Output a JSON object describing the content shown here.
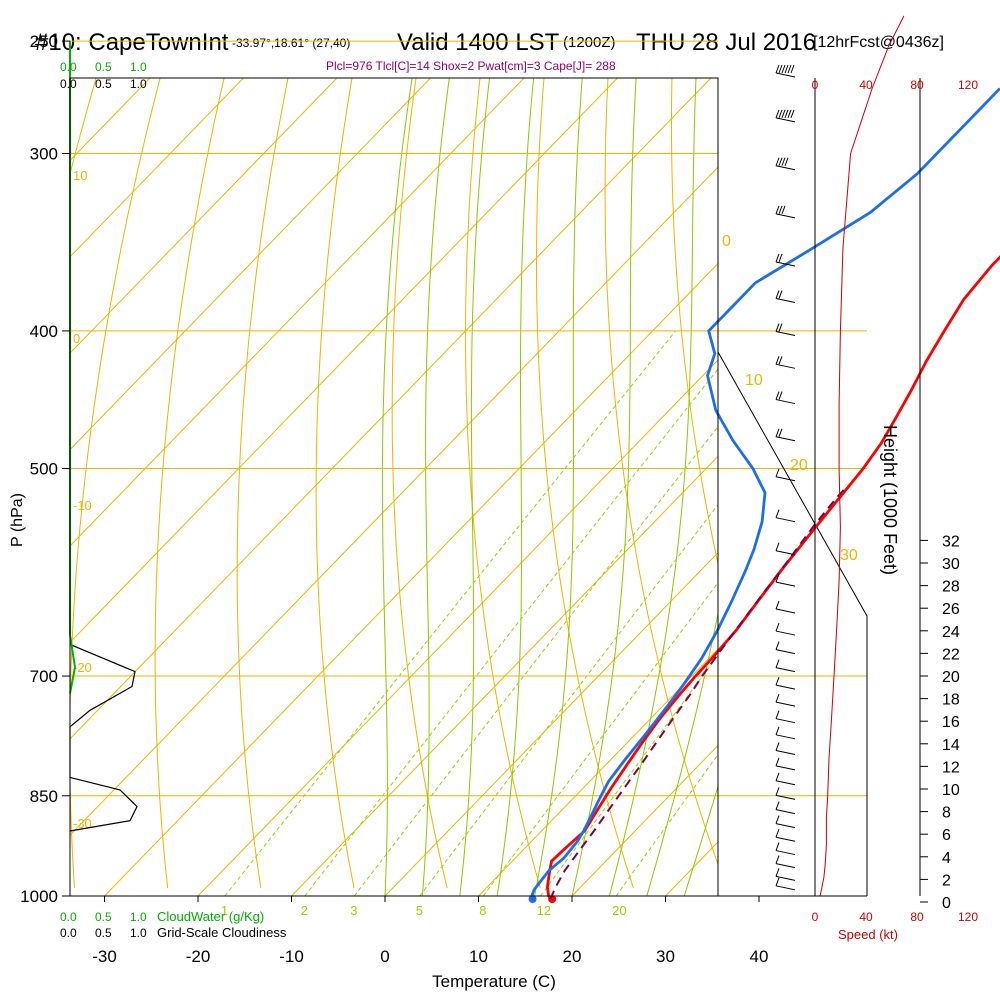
{
  "header": {
    "station": "#10: CapeTownInt",
    "location": "-33.97°,18.61° (27,40)",
    "valid": "Valid 1400 LST",
    "zulu": "(1200Z)",
    "date": "THU 28 Jul 2016",
    "forecast": "[12hrFcst@0436z]",
    "indices": "Plcl=976 Tlcl[C]=14 Shox=2 Pwat[cm]=3 Cape[J]= 288"
  },
  "chart_data": {
    "type": "line",
    "title": "#10: CapeTownInt",
    "xlabel": "Temperature (C)",
    "ylabel": "P (hPa)",
    "right_label": "Height (1000 Feet)",
    "speed_label": "Speed (kt)",
    "cloudwater_label": "CloudWater (g/Kg)",
    "cloudiness_label": "Grid-Scale Cloudiness",
    "x_ticks": [
      "-30",
      "-20",
      "-10",
      "0",
      "10",
      "20",
      "30",
      "40"
    ],
    "pressure_ticks": [
      "250",
      "300",
      "400",
      "500",
      "700",
      "850",
      "1000"
    ],
    "height_ticks": [
      "0",
      "2",
      "4",
      "6",
      "8",
      "10",
      "12",
      "14",
      "16",
      "18",
      "20",
      "22",
      "24",
      "26",
      "28",
      "30",
      "32"
    ],
    "speed_ticks": [
      "0",
      "40",
      "80",
      "120"
    ],
    "cloud_scale_ticks": [
      "0.0",
      "0.5",
      "1.0"
    ],
    "mixing_ratio_labels": [
      "1",
      "2",
      "3",
      "5",
      "8",
      "12",
      "20"
    ],
    "isotherm_labels": [
      "10",
      "0",
      "-10",
      "-20",
      "-30"
    ],
    "adiabat_labels": [
      "0",
      "10",
      "20",
      "30"
    ],
    "colors": {
      "temperature": "#ff0000",
      "dewpoint": "#1e6ee8",
      "parcel": "#800040",
      "grid": "#f0b400",
      "adiabat": "#8cc800",
      "mixing_ratio": "#9ad000",
      "cloudwater": "#00b000",
      "speed": "#cc0000",
      "indices": "#990066"
    },
    "series": [
      {
        "name": "Temperature",
        "points": [
          [
            18.2,
            1005
          ],
          [
            17.5,
            1000
          ],
          [
            16.4,
            985
          ],
          [
            15.0,
            960
          ],
          [
            14.2,
            945
          ],
          [
            14.3,
            930
          ],
          [
            14.6,
            900
          ],
          [
            13.8,
            870
          ],
          [
            13.0,
            840
          ],
          [
            12.3,
            810
          ],
          [
            11.6,
            780
          ],
          [
            11.0,
            750
          ],
          [
            10.6,
            720
          ],
          [
            10.4,
            700
          ],
          [
            10.3,
            680
          ],
          [
            10.0,
            650
          ],
          [
            9.3,
            620
          ],
          [
            8.6,
            590
          ],
          [
            8.0,
            560
          ],
          [
            7.4,
            530
          ],
          [
            6.8,
            500
          ],
          [
            6.1,
            480
          ],
          [
            5.0,
            460
          ],
          [
            3.8,
            440
          ],
          [
            2.4,
            420
          ],
          [
            1.2,
            400
          ],
          [
            0.0,
            380
          ],
          [
            -0.5,
            360
          ],
          [
            -0.5,
            340
          ],
          [
            -0.4,
            320
          ],
          [
            -0.2,
            300
          ],
          [
            0.1,
            285
          ],
          [
            0.7,
            270
          ]
        ]
      },
      {
        "name": "Dewpoint",
        "points": [
          [
            16.1,
            1005
          ],
          [
            15.7,
            1000
          ],
          [
            15.3,
            990
          ],
          [
            15.1,
            975
          ],
          [
            14.9,
            960
          ],
          [
            15.2,
            940
          ],
          [
            14.9,
            915
          ],
          [
            14.5,
            900
          ],
          [
            13.8,
            880
          ],
          [
            12.7,
            850
          ],
          [
            12.0,
            830
          ],
          [
            11.5,
            800
          ],
          [
            11.1,
            770
          ],
          [
            10.6,
            740
          ],
          [
            10.0,
            710
          ],
          [
            9.2,
            680
          ],
          [
            8.0,
            650
          ],
          [
            6.5,
            620
          ],
          [
            4.8,
            590
          ],
          [
            3.5,
            570
          ],
          [
            1.5,
            545
          ],
          [
            -1.2,
            520
          ],
          [
            -5.0,
            500
          ],
          [
            -10.0,
            478
          ],
          [
            -15.0,
            455
          ],
          [
            -19.5,
            430
          ],
          [
            -21.0,
            415
          ],
          [
            -24.0,
            400
          ],
          [
            -24.0,
            385
          ],
          [
            -24.0,
            370
          ],
          [
            -21.5,
            350
          ],
          [
            -19.0,
            330
          ],
          [
            -18.0,
            310
          ],
          [
            -18.0,
            300
          ],
          [
            -18.0,
            285
          ],
          [
            -18.0,
            270
          ]
        ]
      },
      {
        "name": "Parcel",
        "points": [
          [
            18.0,
            1005
          ],
          [
            17.3,
            985
          ],
          [
            16.6,
            960
          ],
          [
            16.1,
            930
          ],
          [
            15.6,
            900
          ],
          [
            15.0,
            870
          ],
          [
            14.4,
            840
          ],
          [
            13.8,
            810
          ],
          [
            13.1,
            780
          ],
          [
            12.4,
            750
          ],
          [
            11.7,
            720
          ],
          [
            11.1,
            700
          ],
          [
            10.4,
            670
          ],
          [
            9.7,
            640
          ],
          [
            9.0,
            610
          ],
          [
            8.3,
            580
          ],
          [
            7.5,
            550
          ],
          [
            7.0,
            525
          ],
          [
            6.9,
            515
          ]
        ]
      }
    ],
    "cloudiness": [
      [
        0.0,
        665
      ],
      [
        0.65,
        695
      ],
      [
        0.62,
        712
      ],
      [
        0.2,
        740
      ],
      [
        0.0,
        760
      ],
      [
        0.0,
        825
      ],
      [
        0.5,
        842
      ],
      [
        0.67,
        865
      ],
      [
        0.6,
        885
      ],
      [
        0.0,
        900
      ]
    ],
    "cloudwater": [
      [
        0.0,
        250
      ],
      [
        0.0,
        655
      ],
      [
        0.05,
        690
      ],
      [
        0.0,
        720
      ]
    ],
    "wind_speed": [
      [
        4,
        1000
      ],
      [
        5,
        990
      ],
      [
        7,
        970
      ],
      [
        8,
        950
      ],
      [
        9,
        920
      ],
      [
        9,
        880
      ],
      [
        10,
        850
      ],
      [
        11,
        800
      ],
      [
        13,
        750
      ],
      [
        15,
        700
      ],
      [
        17,
        650
      ],
      [
        19,
        600
      ],
      [
        20,
        550
      ],
      [
        19,
        500
      ],
      [
        19,
        450
      ],
      [
        20,
        400
      ],
      [
        22,
        350
      ],
      [
        28,
        300
      ],
      [
        45,
        270
      ],
      [
        58,
        252
      ],
      [
        70,
        240
      ]
    ],
    "wind_barbs": [
      {
        "p": 265,
        "flags": 6
      },
      {
        "p": 285,
        "flags": 6
      },
      {
        "p": 308,
        "flags": 4
      },
      {
        "p": 333,
        "flags": 3
      },
      {
        "p": 360,
        "flags": 2
      },
      {
        "p": 382,
        "flags": 2
      },
      {
        "p": 403,
        "flags": 2
      },
      {
        "p": 425,
        "flags": 2
      },
      {
        "p": 450,
        "flags": 2
      },
      {
        "p": 478,
        "flags": 2
      },
      {
        "p": 510,
        "flags": 1
      },
      {
        "p": 545,
        "flags": 1
      },
      {
        "p": 575,
        "flags": 1
      },
      {
        "p": 605,
        "flags": 1
      },
      {
        "p": 632,
        "flags": 1
      },
      {
        "p": 655,
        "flags": 1
      },
      {
        "p": 675,
        "flags": 1
      },
      {
        "p": 695,
        "flags": 1
      },
      {
        "p": 715,
        "flags": 1
      },
      {
        "p": 735,
        "flags": 1
      },
      {
        "p": 755,
        "flags": 1
      },
      {
        "p": 775,
        "flags": 1
      },
      {
        "p": 795,
        "flags": 1
      },
      {
        "p": 815,
        "flags": 1
      },
      {
        "p": 835,
        "flags": 1
      },
      {
        "p": 855,
        "flags": 1
      },
      {
        "p": 875,
        "flags": 1
      },
      {
        "p": 895,
        "flags": 1
      },
      {
        "p": 915,
        "flags": 1
      },
      {
        "p": 935,
        "flags": 1
      },
      {
        "p": 955,
        "flags": 1
      },
      {
        "p": 975,
        "flags": 1
      },
      {
        "p": 990,
        "flags": 1
      }
    ]
  }
}
